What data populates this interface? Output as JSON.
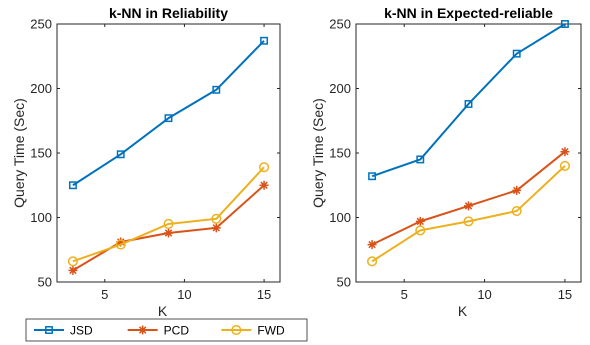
{
  "chart_data": [
    {
      "type": "line",
      "title": "k-NN in Reliability",
      "xlabel": "K",
      "ylabel": "Query Time (Sec)",
      "xlim": [
        2,
        16
      ],
      "ylim": [
        50,
        250
      ],
      "xticks": [
        5,
        10,
        15
      ],
      "yticks": [
        50,
        100,
        150,
        200,
        250
      ],
      "x": [
        3,
        6,
        9,
        12,
        15
      ],
      "series": [
        {
          "name": "JSD",
          "color": "#0072BD",
          "marker": "square",
          "values": [
            125,
            149,
            177,
            199,
            237
          ]
        },
        {
          "name": "PCD",
          "color": "#D95319",
          "marker": "star",
          "values": [
            59,
            81,
            88,
            92,
            125
          ]
        },
        {
          "name": "FWD",
          "color": "#EDB120",
          "marker": "circle",
          "values": [
            66,
            79,
            95,
            99,
            139
          ]
        }
      ]
    },
    {
      "type": "line",
      "title": "k-NN in Expected-reliable",
      "xlabel": "K",
      "ylabel": "Query Time (Sec)",
      "xlim": [
        2,
        16
      ],
      "ylim": [
        50,
        250
      ],
      "xticks": [
        5,
        10,
        15
      ],
      "yticks": [
        50,
        100,
        150,
        200,
        250
      ],
      "x": [
        3,
        6,
        9,
        12,
        15
      ],
      "series": [
        {
          "name": "JSD",
          "color": "#0072BD",
          "marker": "square",
          "values": [
            132,
            145,
            188,
            227,
            250
          ]
        },
        {
          "name": "PCD",
          "color": "#D95319",
          "marker": "star",
          "values": [
            79,
            97,
            109,
            121,
            151
          ]
        },
        {
          "name": "FWD",
          "color": "#EDB120",
          "marker": "circle",
          "values": [
            66,
            90,
            97,
            105,
            140
          ]
        }
      ]
    }
  ],
  "legend": {
    "placement": "bottom",
    "entries": [
      "JSD",
      "PCD",
      "FWD"
    ]
  }
}
